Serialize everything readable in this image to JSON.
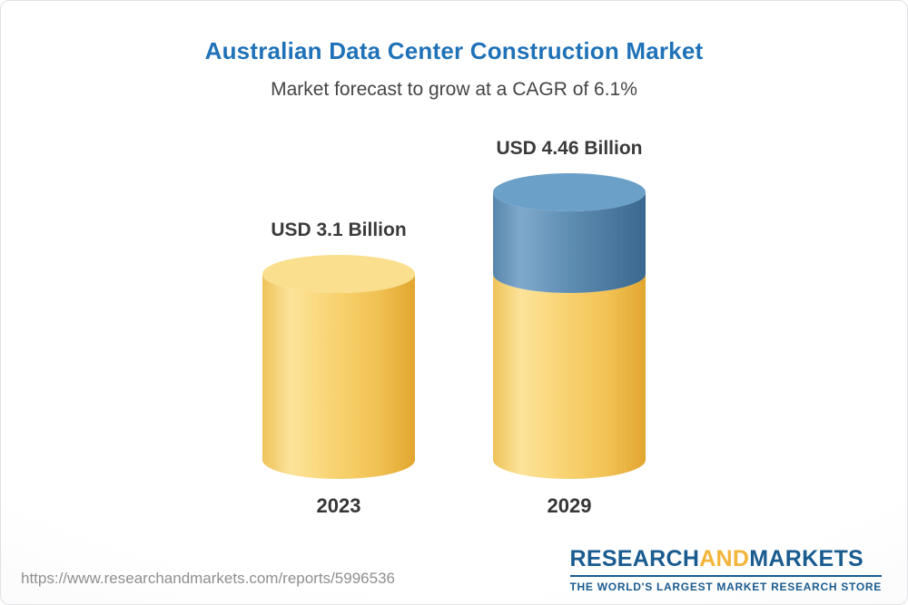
{
  "header": {
    "title": "Australian Data Center Construction Market",
    "subtitle": "Market forecast to grow at a CAGR of 6.1%"
  },
  "chart_data": {
    "type": "bar",
    "bar_style": "3d-cylinder",
    "title": "Australian Data Center Construction Market",
    "subtitle": "Market forecast to grow at a CAGR of 6.1%",
    "unit": "USD Billion",
    "categories": [
      "2023",
      "2029"
    ],
    "values": [
      3.1,
      4.46
    ],
    "value_labels": [
      "USD 3.1 Billion",
      "USD 4.46 Billion"
    ],
    "series": [
      {
        "name": "2023 baseline (gold segment)",
        "values": [
          3.1,
          3.1
        ]
      },
      {
        "name": "Growth to 2029 (blue segment)",
        "values": [
          0,
          1.36
        ]
      }
    ],
    "cagr_percent": 6.1,
    "legend": "none",
    "gridlines": false,
    "axes_shown": false
  },
  "footer": {
    "url": "https://www.researchandmarkets.com/reports/5996536",
    "logo": {
      "research": "RESEARCH",
      "and": "AND",
      "markets": "MARKETS",
      "tagline": "THE WORLD'S LARGEST MARKET RESEARCH STORE"
    }
  },
  "colors": {
    "title_blue": "#1f72b8",
    "subtitle_gray": "#454545",
    "label_dark": "#3a3a3a",
    "url_gray": "#8f8f8f",
    "logo_blue": "#1a5c90",
    "logo_gold": "#f2b43a",
    "gold_top": "#fadf8e",
    "blue_top": "#6ba0c9",
    "gold_gradient": [
      [
        0,
        "#eec258"
      ],
      [
        0.18,
        "#fce39a"
      ],
      [
        0.45,
        "#f9d474"
      ],
      [
        0.75,
        "#f1c254"
      ],
      [
        1,
        "#e2a62f"
      ]
    ],
    "blue_gradient": [
      [
        0,
        "#5886ab"
      ],
      [
        0.18,
        "#7fa9cc"
      ],
      [
        0.45,
        "#6392b6"
      ],
      [
        0.75,
        "#4c7aa0"
      ],
      [
        1,
        "#3a688e"
      ]
    ]
  }
}
